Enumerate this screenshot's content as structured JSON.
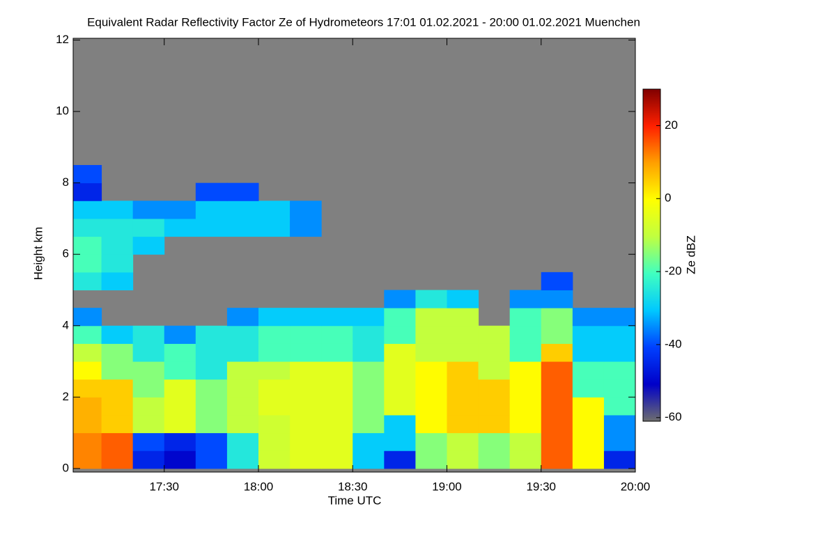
{
  "chart_data": {
    "type": "heatmap",
    "title": "Equivalent Radar Reflectivity Factor Ze of Hydrometeors   17:01 01.02.2021 - 20:00 01.02.2021 Muenchen",
    "x_label": "Time UTC",
    "y_label": "Height km",
    "colorbar_label": "Ze dBZ",
    "x": [
      "17:05",
      "17:15",
      "17:25",
      "17:35",
      "17:45",
      "17:55",
      "18:05",
      "18:15",
      "18:25",
      "18:35",
      "18:45",
      "18:55",
      "19:05",
      "19:15",
      "19:25",
      "19:35",
      "19:45",
      "19:55"
    ],
    "y": [
      0.25,
      0.75,
      1.25,
      1.75,
      2.25,
      2.75,
      3.25,
      3.75,
      4.25,
      4.75,
      5.25,
      5.75,
      6.25,
      6.75,
      7.25,
      7.75,
      8.25
    ],
    "z": [
      [
        12,
        15,
        -45,
        -50,
        -40,
        -25,
        -8,
        -5,
        -5,
        -30,
        -45,
        -15,
        -10,
        -15,
        -10,
        15,
        0,
        -45
      ],
      [
        12,
        15,
        -40,
        -45,
        -40,
        -25,
        -8,
        -5,
        -5,
        -30,
        -30,
        -15,
        -10,
        -15,
        -10,
        15,
        0,
        -35
      ],
      [
        8,
        5,
        -10,
        -5,
        -15,
        -10,
        -8,
        -5,
        -5,
        -15,
        -30,
        0,
        5,
        5,
        0,
        15,
        0,
        -35
      ],
      [
        8,
        5,
        -10,
        -5,
        -15,
        -10,
        -5,
        -5,
        -5,
        -15,
        -5,
        0,
        5,
        5,
        0,
        15,
        0,
        -20
      ],
      [
        5,
        5,
        -15,
        -5,
        -15,
        -10,
        -5,
        -5,
        -5,
        -15,
        -5,
        0,
        5,
        5,
        0,
        15,
        -20,
        -20
      ],
      [
        0,
        -15,
        -15,
        -20,
        -25,
        -10,
        -10,
        -5,
        -5,
        -15,
        -5,
        0,
        5,
        -10,
        0,
        15,
        -20,
        -20
      ],
      [
        -10,
        -15,
        -25,
        -20,
        -25,
        -25,
        -20,
        -20,
        -20,
        -25,
        -5,
        -10,
        -10,
        -10,
        -20,
        5,
        -30,
        -30
      ],
      [
        -20,
        -30,
        -25,
        -35,
        -25,
        -25,
        -20,
        -20,
        -20,
        -25,
        -20,
        -10,
        -10,
        -10,
        -20,
        -15,
        -30,
        -30
      ],
      [
        -35,
        null,
        null,
        null,
        null,
        -35,
        -30,
        -30,
        -30,
        -30,
        -20,
        -10,
        -10,
        null,
        -20,
        -15,
        -35,
        -35
      ],
      [
        null,
        null,
        null,
        null,
        null,
        null,
        null,
        null,
        null,
        null,
        -35,
        -25,
        -30,
        null,
        -35,
        -35,
        null,
        null
      ],
      [
        -25,
        -30,
        null,
        null,
        null,
        null,
        null,
        null,
        null,
        null,
        null,
        null,
        null,
        null,
        null,
        -40,
        null,
        null
      ],
      [
        -20,
        -25,
        null,
        null,
        null,
        null,
        null,
        null,
        null,
        null,
        null,
        null,
        null,
        null,
        null,
        null,
        null,
        null
      ],
      [
        -20,
        -25,
        -30,
        null,
        null,
        null,
        null,
        null,
        null,
        null,
        null,
        null,
        null,
        null,
        null,
        null,
        null,
        null
      ],
      [
        -25,
        -25,
        -25,
        -30,
        -30,
        -30,
        -30,
        -35,
        null,
        null,
        null,
        null,
        null,
        null,
        null,
        null,
        null,
        null
      ],
      [
        -30,
        -30,
        -35,
        -35,
        -30,
        -30,
        -30,
        -35,
        null,
        null,
        null,
        null,
        null,
        null,
        null,
        null,
        null,
        null
      ],
      [
        -45,
        null,
        null,
        null,
        -40,
        -40,
        null,
        null,
        null,
        null,
        null,
        null,
        null,
        null,
        null,
        null,
        null,
        null
      ],
      [
        -40,
        null,
        null,
        null,
        null,
        null,
        null,
        null,
        null,
        null,
        null,
        null,
        null,
        null,
        null,
        null,
        null,
        null
      ]
    ],
    "xlim": [
      "17:01",
      "20:00"
    ],
    "xticks": [
      "17:30",
      "18:00",
      "18:30",
      "19:00",
      "19:30",
      "20:00"
    ],
    "ylim": [
      -0.1,
      12.05
    ],
    "yticks": [
      0,
      2,
      4,
      6,
      8,
      10,
      12
    ],
    "clim": [
      -61,
      30
    ],
    "cticks": [
      20,
      0,
      -20,
      -40,
      -60
    ],
    "colormap": [
      "#6e6e6e",
      "#0000c8",
      "#0040ff",
      "#00c8ff",
      "#40ffc0",
      "#c0ff40",
      "#ffff00",
      "#ffa000",
      "#ff2000",
      "#800000"
    ],
    "background": "#808080"
  }
}
